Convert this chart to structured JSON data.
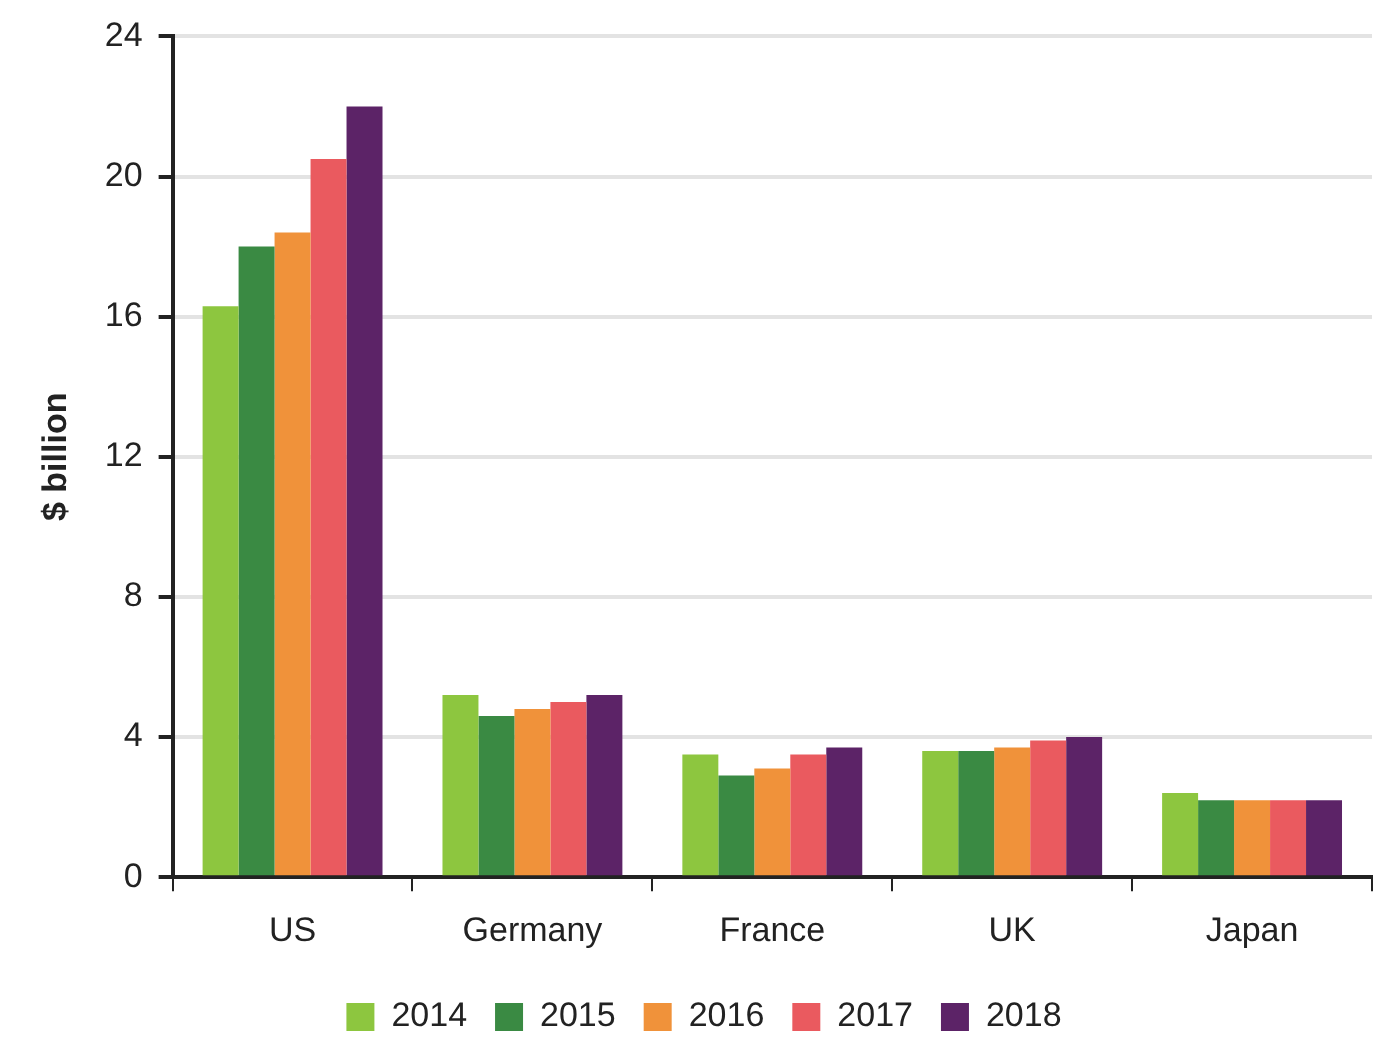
{
  "chart_data": {
    "type": "bar",
    "ylabel": "$ billion",
    "categories": [
      "US",
      "Germany",
      "France",
      "UK",
      "Japan"
    ],
    "series": [
      {
        "name": "2014",
        "color": "#8dc63f",
        "values": [
          16.3,
          5.2,
          3.5,
          3.6,
          2.4
        ]
      },
      {
        "name": "2015",
        "color": "#3a8a43",
        "values": [
          18.0,
          4.6,
          2.9,
          3.6,
          2.2
        ]
      },
      {
        "name": "2016",
        "color": "#f0923a",
        "values": [
          18.4,
          4.8,
          3.1,
          3.7,
          2.2
        ]
      },
      {
        "name": "2017",
        "color": "#ea5a5f",
        "values": [
          20.5,
          5.0,
          3.5,
          3.9,
          2.2
        ]
      },
      {
        "name": "2018",
        "color": "#5c2367",
        "values": [
          22.0,
          5.2,
          3.7,
          4.0,
          2.2
        ]
      }
    ],
    "ylim": [
      0,
      24
    ],
    "yticks": [
      0,
      4,
      8,
      12,
      16,
      20,
      24
    ],
    "grid": "y",
    "legend": "bottom"
  }
}
